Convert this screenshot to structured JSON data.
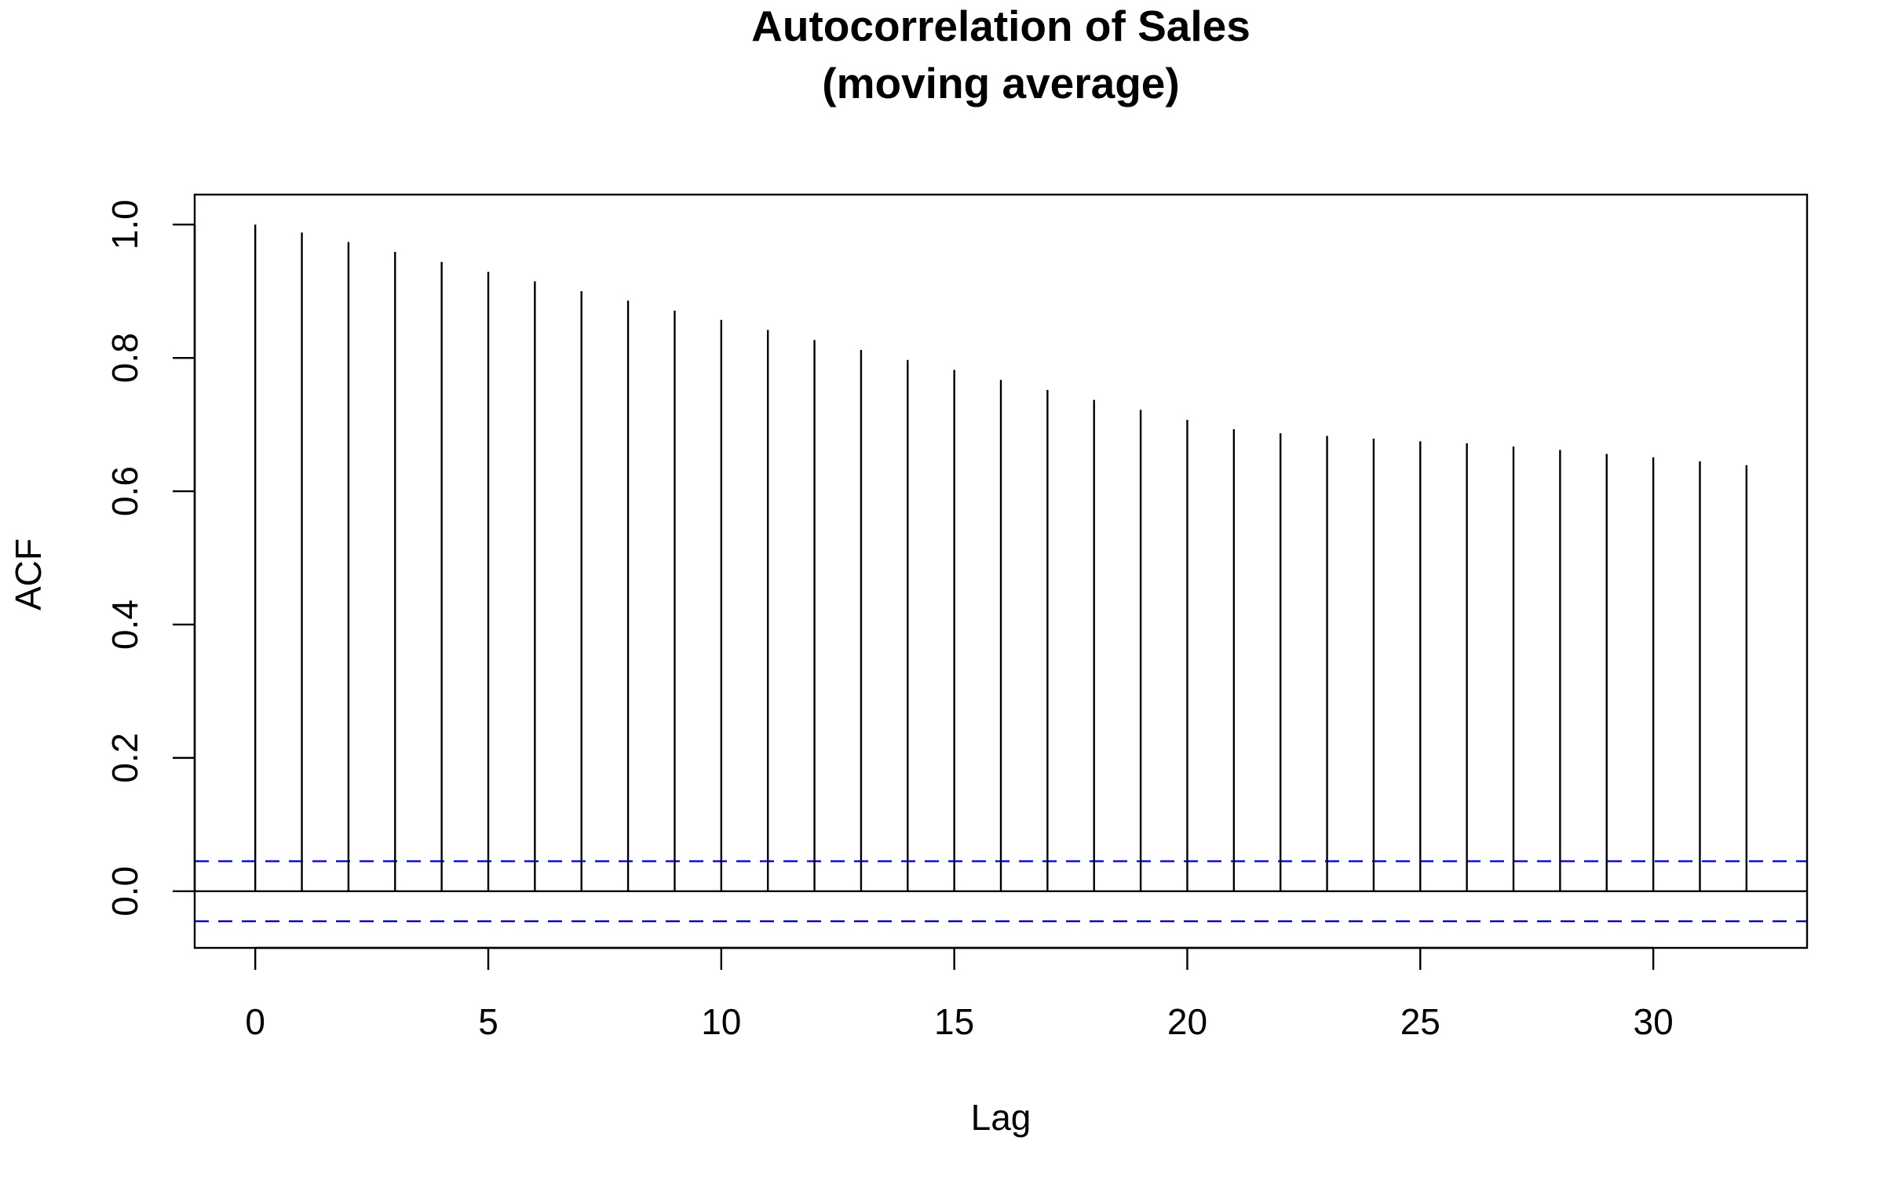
{
  "chart_data": {
    "type": "bar",
    "title": "Autocorrelation of Sales",
    "subtitle": "(moving average)",
    "xlabel": "Lag",
    "ylabel": "ACF",
    "x": [
      0,
      1,
      2,
      3,
      4,
      5,
      6,
      7,
      8,
      9,
      10,
      11,
      12,
      13,
      14,
      15,
      16,
      17,
      18,
      19,
      20,
      21,
      22,
      23,
      24,
      25,
      26,
      27,
      28,
      29,
      30,
      31,
      32
    ],
    "values": [
      1.0,
      0.988,
      0.974,
      0.959,
      0.944,
      0.929,
      0.915,
      0.9,
      0.886,
      0.871,
      0.857,
      0.842,
      0.827,
      0.812,
      0.797,
      0.782,
      0.767,
      0.752,
      0.737,
      0.722,
      0.707,
      0.693,
      0.687,
      0.683,
      0.679,
      0.675,
      0.672,
      0.667,
      0.662,
      0.656,
      0.651,
      0.645,
      0.639
    ],
    "confidence_bounds": [
      0.045,
      -0.045
    ],
    "xlim": [
      -1.3,
      33.3
    ],
    "ylim": [
      -0.085,
      1.045
    ],
    "xticks": [
      0,
      5,
      10,
      15,
      20,
      25,
      30
    ],
    "xtick_labels": [
      "0",
      "5",
      "10",
      "15",
      "20",
      "25",
      "30"
    ],
    "yticks": [
      0.0,
      0.2,
      0.4,
      0.6,
      0.8,
      1.0
    ],
    "ytick_labels": [
      "0.0",
      "0.2",
      "0.4",
      "0.6",
      "0.8",
      "1.0"
    ],
    "grid": false,
    "legend": "none",
    "colors": {
      "spikes": "#000000",
      "zero_line": "#000000",
      "confidence_lines": "#0000ff",
      "frame": "#000000",
      "background": "#ffffff"
    }
  }
}
